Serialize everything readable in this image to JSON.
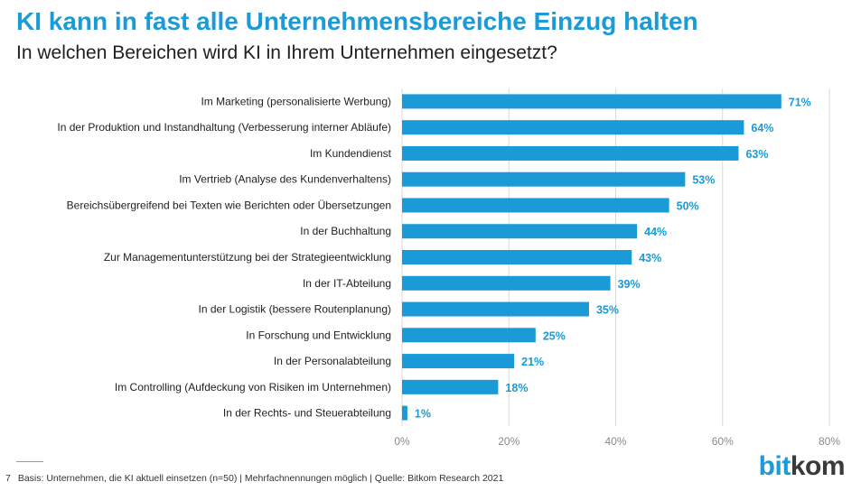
{
  "header": {
    "title": "KI kann in fast alle Unternehmensbereiche Einzug halten",
    "subtitle": "In welchen Bereichen wird KI in Ihrem Unternehmen eingesetzt?"
  },
  "chart_data": {
    "type": "bar",
    "orientation": "horizontal",
    "categories": [
      "Im Marketing (personalisierte Werbung)",
      "In der Produktion und Instandhaltung (Verbesserung interner Abläufe)",
      "Im Kundendienst",
      "Im Vertrieb (Analyse des Kundenverhaltens)",
      "Bereichsübergreifend bei Texten wie Berichten oder Übersetzungen",
      "In der Buchhaltung",
      "Zur Managementunterstützung bei der Strategieentwicklung",
      "In der IT-Abteilung",
      "In der Logistik (bessere Routenplanung)",
      "In Forschung und Entwicklung",
      "In der Personalabteilung",
      "Im Controlling (Aufdeckung von Risiken im Unternehmen)",
      "In der Rechts- und Steuerabteilung"
    ],
    "values": [
      71,
      64,
      63,
      53,
      50,
      44,
      43,
      39,
      35,
      25,
      21,
      18,
      1
    ],
    "value_labels": [
      "71%",
      "64%",
      "63%",
      "53%",
      "50%",
      "44%",
      "43%",
      "39%",
      "35%",
      "25%",
      "21%",
      "18%",
      "1%"
    ],
    "xlim": [
      0,
      80
    ],
    "xticks": [
      0,
      20,
      40,
      60,
      80
    ],
    "xtick_labels": [
      "0%",
      "20%",
      "40%",
      "60%",
      "80%"
    ],
    "grid": "vertical",
    "bar_color": "#1a9ad6",
    "grid_color": "#d9d9d9"
  },
  "footer": {
    "page_number": "7",
    "note": "Basis: Unternehmen, die KI aktuell einsetzen (n=50) | Mehrfachnennungen möglich | Quelle: Bitkom Research 2021"
  },
  "logo": {
    "part1": "bit",
    "part2": "kom"
  }
}
